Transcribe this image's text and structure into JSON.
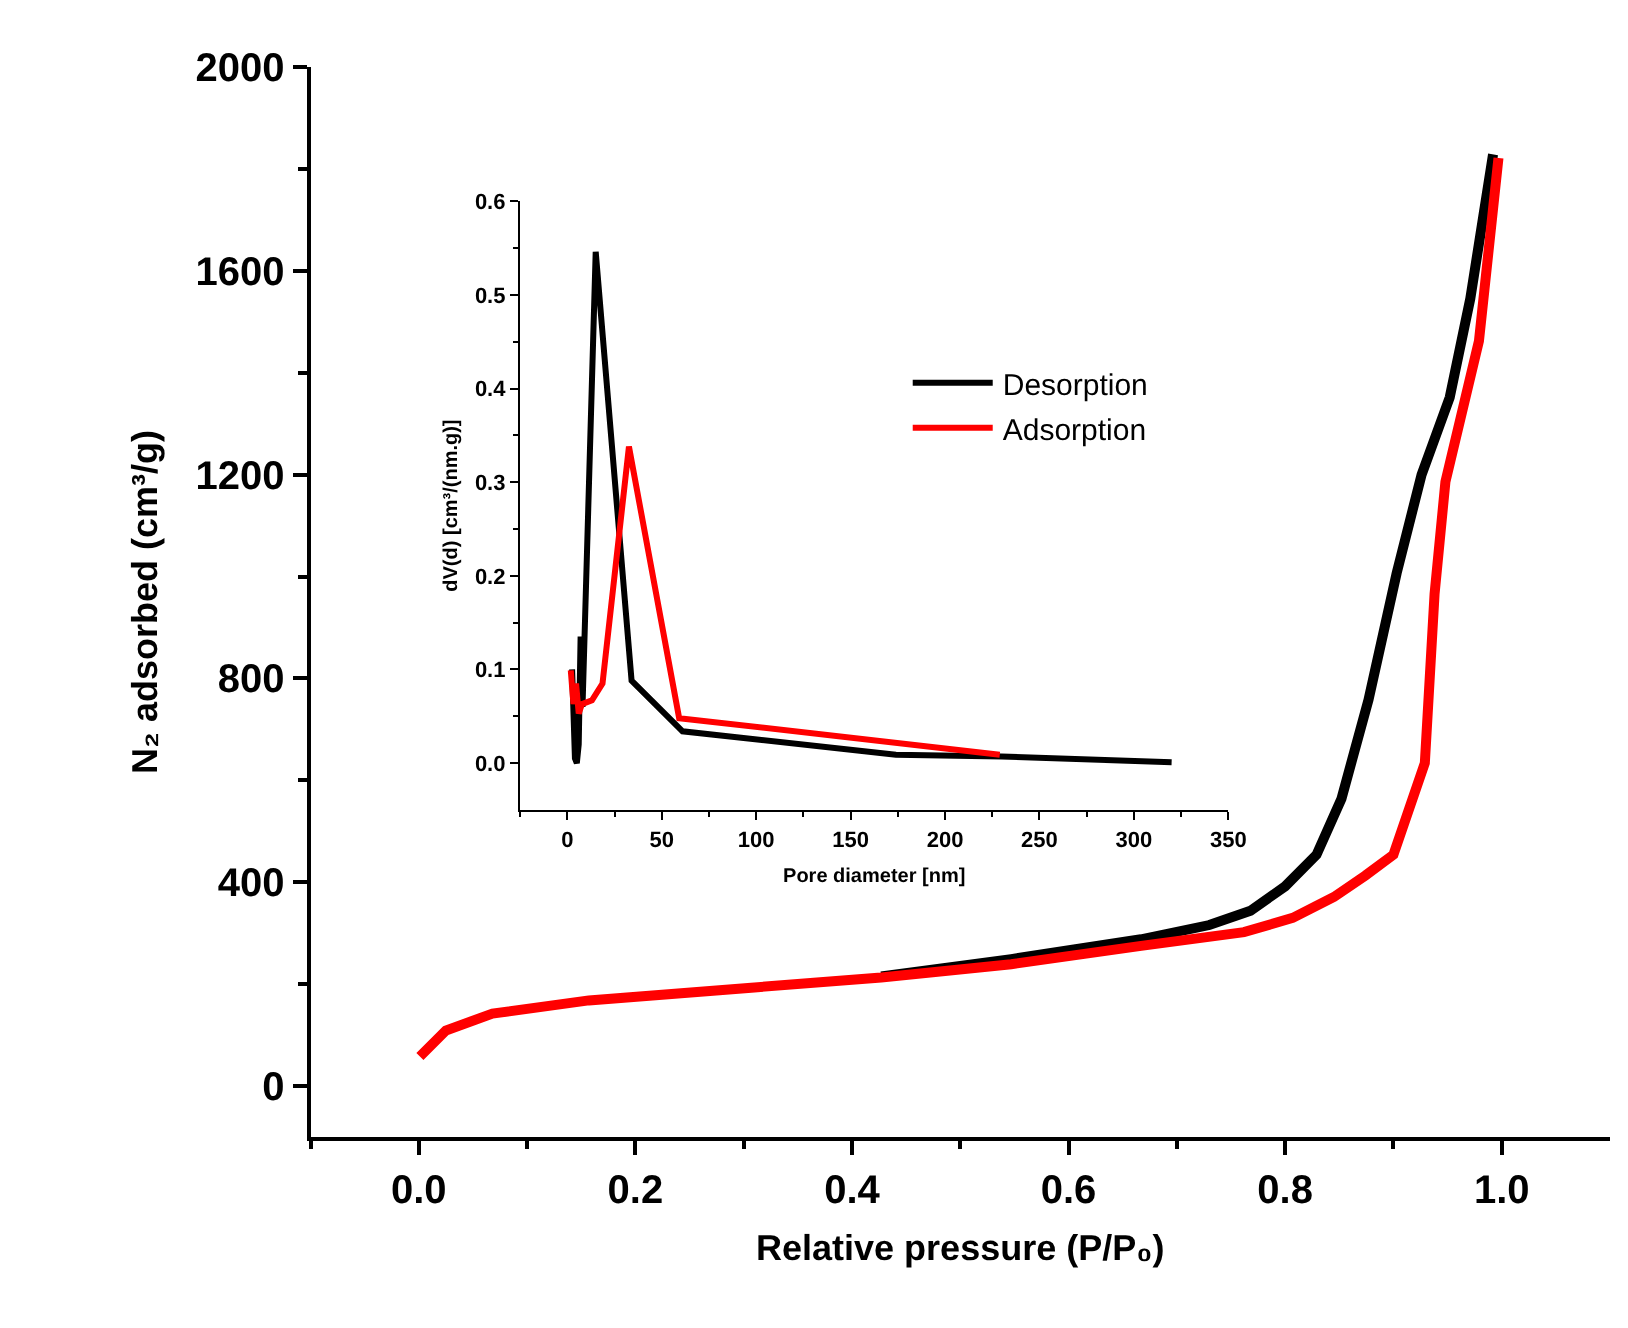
{
  "chart_data": [
    {
      "type": "line",
      "xlabel": "Relative pressure (P/P₀)",
      "ylabel": "N₂ adsorbed (cm³/g)",
      "xlim": [
        -0.1,
        1.1
      ],
      "ylim": [
        -100,
        2000
      ],
      "xticks": [
        {
          "value": -0.1,
          "label": null
        },
        {
          "value": 0,
          "label": "0.0"
        },
        {
          "value": 0.1,
          "label": null
        },
        {
          "value": 0.2,
          "label": "0.2"
        },
        {
          "value": 0.3,
          "label": null
        },
        {
          "value": 0.4,
          "label": "0.4"
        },
        {
          "value": 0.5,
          "label": null
        },
        {
          "value": 0.6,
          "label": "0.6"
        },
        {
          "value": 0.7,
          "label": null
        },
        {
          "value": 0.8,
          "label": "0.8"
        },
        {
          "value": 0.9,
          "label": null
        },
        {
          "value": 1,
          "label": "1.0"
        }
      ],
      "yticks": [
        0,
        {
          "value": 200,
          "label": null
        },
        400,
        {
          "value": 600,
          "label": null
        },
        800,
        {
          "value": 1000,
          "label": null
        },
        1200,
        {
          "value": 1400,
          "label": null
        },
        1600,
        {
          "value": 1800,
          "label": null
        },
        2000
      ],
      "legend": false,
      "line_style": "solid",
      "marker": "none",
      "series": [
        {
          "color": "#000000",
          "x": [
            0.427,
            0.547,
            0.667,
            0.73,
            0.768,
            0.8,
            0.829,
            0.852,
            0.877,
            0.903,
            0.926,
            0.952,
            0.971,
            0.992
          ],
          "values": [
            215,
            249,
            288,
            316,
            344,
            392,
            454,
            564,
            758,
            1007,
            1200,
            1352,
            1546,
            1829
          ]
        },
        {
          "color": "#ff0000",
          "x": [
            0.001,
            0.025,
            0.068,
            0.157,
            0.307,
            0.427,
            0.547,
            0.667,
            0.762,
            0.807,
            0.845,
            0.874,
            0.9,
            0.929,
            0.938,
            0.948,
            0.979,
            0.997
          ],
          "values": [
            58,
            109,
            142,
            168,
            193,
            213,
            239,
            275,
            302,
            330,
            371,
            413,
            454,
            634,
            966,
            1186,
            1463,
            1822
          ]
        }
      ]
    },
    {
      "type": "line",
      "xlabel": "Pore diameter [nm]",
      "ylabel": "dV(d) [cm³/(nm.g)]",
      "xlim": [
        -25,
        350
      ],
      "ylim": [
        -0.05,
        0.6
      ],
      "xticks": [
        {
          "value": -25,
          "label": null
        },
        0,
        {
          "value": 25,
          "label": null
        },
        50,
        {
          "value": 75,
          "label": null
        },
        100,
        {
          "value": 125,
          "label": null
        },
        150,
        {
          "value": 175,
          "label": null
        },
        200,
        {
          "value": 225,
          "label": null
        },
        250,
        {
          "value": 275,
          "label": null
        },
        300,
        {
          "value": 325,
          "label": null
        },
        350
      ],
      "yticks": [
        {
          "value": 0,
          "label": "0.0"
        },
        {
          "value": 0.05,
          "label": null
        },
        0.1,
        {
          "value": 0.15,
          "label": null
        },
        0.2,
        {
          "value": 0.25,
          "label": null
        },
        0.3,
        {
          "value": 0.35,
          "label": null
        },
        0.4,
        {
          "value": 0.45,
          "label": null
        },
        0.5,
        {
          "value": 0.55,
          "label": null
        },
        0.6
      ],
      "legend": "top right",
      "line_style": "solid",
      "marker": "none",
      "series": [
        {
          "name": "Desorption",
          "color": "#000000",
          "x": [
            2.5,
            4,
            5,
            6,
            7,
            8,
            15,
            34,
            61,
            174,
            230,
            320
          ],
          "values": [
            0.1,
            0.005,
            0.0,
            0.02,
            0.135,
            0.06,
            0.546,
            0.088,
            0.034,
            0.009,
            0.007,
            0.001
          ]
        },
        {
          "name": "Adsorption",
          "color": "#ff0000",
          "x": [
            1.8,
            3.2,
            4.6,
            6,
            7.7,
            13,
            18.6,
            32.6,
            59.2,
            229
          ],
          "values": [
            0.099,
            0.063,
            0.085,
            0.053,
            0.063,
            0.067,
            0.085,
            0.338,
            0.048,
            0.009
          ]
        }
      ]
    }
  ]
}
